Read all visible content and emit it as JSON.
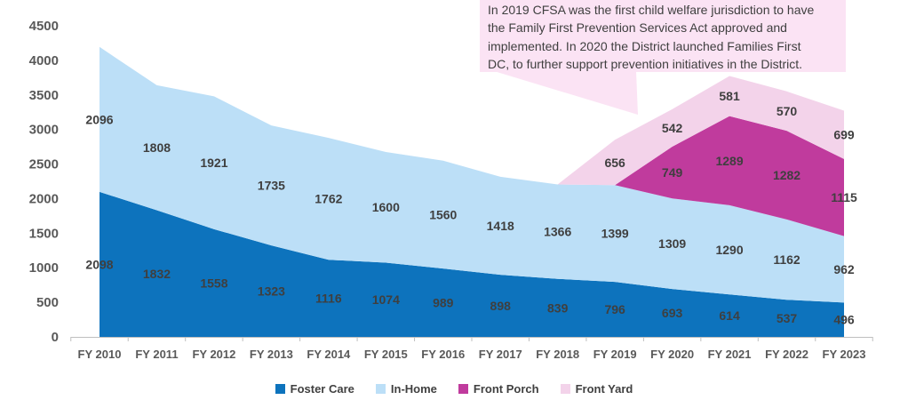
{
  "annotation": {
    "bg_color": "#FBE3F4",
    "text_color": "#3F3F3F",
    "lines": [
      "In 2019 CFSA was the first child welfare jurisdiction to have",
      "the Family First Prevention Services Act approved and",
      "implemented. In 2020 the District launched Families First",
      "DC, to further support prevention initiatives in the District."
    ]
  },
  "chart_data": {
    "type": "area",
    "stacked": true,
    "title": "",
    "xlabel": "",
    "ylabel": "",
    "grid": false,
    "legend_position": "bottom",
    "ylim": [
      0,
      4500
    ],
    "ytick_step": 500,
    "yticks": [
      0,
      500,
      1000,
      1500,
      2000,
      2500,
      3000,
      3500,
      4000,
      4500
    ],
    "categories": [
      "FY 2010",
      "FY 2011",
      "FY 2012",
      "FY 2013",
      "FY 2014",
      "FY 2015",
      "FY 2016",
      "FY 2017",
      "FY 2018",
      "FY 2019",
      "FY 2020",
      "FY 2021",
      "FY 2022",
      "FY 2023"
    ],
    "series": [
      {
        "name": "Foster Care",
        "color": "#0D73BD",
        "values": [
          2098,
          1832,
          1558,
          1323,
          1116,
          1074,
          989,
          898,
          839,
          796,
          693,
          614,
          537,
          496
        ]
      },
      {
        "name": "In-Home",
        "color": "#BCDFF7",
        "values": [
          2096,
          1808,
          1921,
          1735,
          1762,
          1600,
          1560,
          1418,
          1366,
          1399,
          1309,
          1290,
          1162,
          962
        ]
      },
      {
        "name": "Front Porch",
        "color": "#C03B9D",
        "values": [
          0,
          0,
          0,
          0,
          0,
          0,
          0,
          0,
          0,
          0,
          749,
          1289,
          1282,
          1115
        ]
      },
      {
        "name": "Front Yard",
        "color": "#F3D3EA",
        "values": [
          0,
          0,
          0,
          0,
          0,
          0,
          0,
          0,
          0,
          656,
          542,
          581,
          570,
          699
        ]
      }
    ],
    "axis_text_color": "#595959",
    "data_label_color": "#3F3F3F"
  }
}
